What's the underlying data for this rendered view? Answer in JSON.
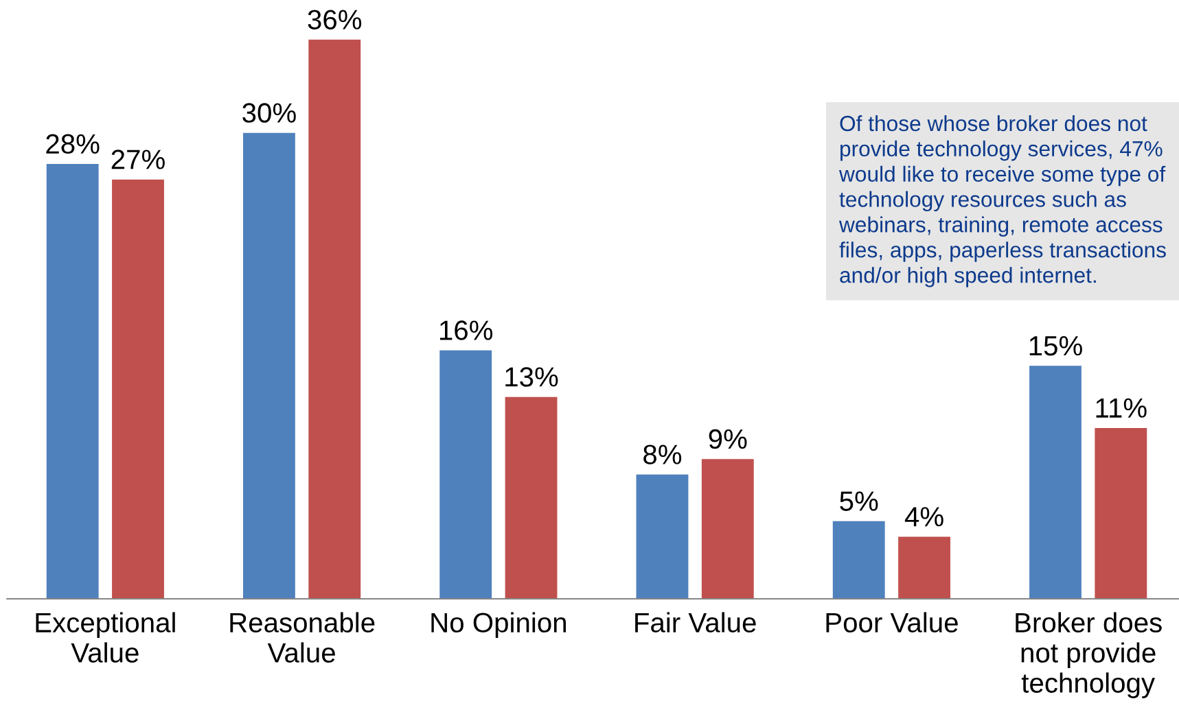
{
  "chart_data": {
    "type": "bar",
    "categories": [
      "Exceptional\nValue",
      "Reasonable\nValue",
      "No Opinion",
      "Fair Value",
      "Poor Value",
      "Broker does\nnot provide\ntechnology"
    ],
    "series": [
      {
        "color": "#4f81bd",
        "values": [
          28,
          30,
          16,
          8,
          5,
          15
        ],
        "value_labels": [
          "28%",
          "30%",
          "16%",
          "8%",
          "5%",
          "15%"
        ]
      },
      {
        "color": "#c0504d",
        "values": [
          27,
          36,
          13,
          9,
          4,
          11
        ],
        "value_labels": [
          "27%",
          "36%",
          "13%",
          "9%",
          "4%",
          "11%"
        ]
      }
    ],
    "tick_labels": "x",
    "annotations": [
      "Of those whose broker does not provide technology services, 47% would like to receive some type of technology resources such as webinars, training, remote access files, apps, paperless transactions and/or high speed internet."
    ]
  }
}
